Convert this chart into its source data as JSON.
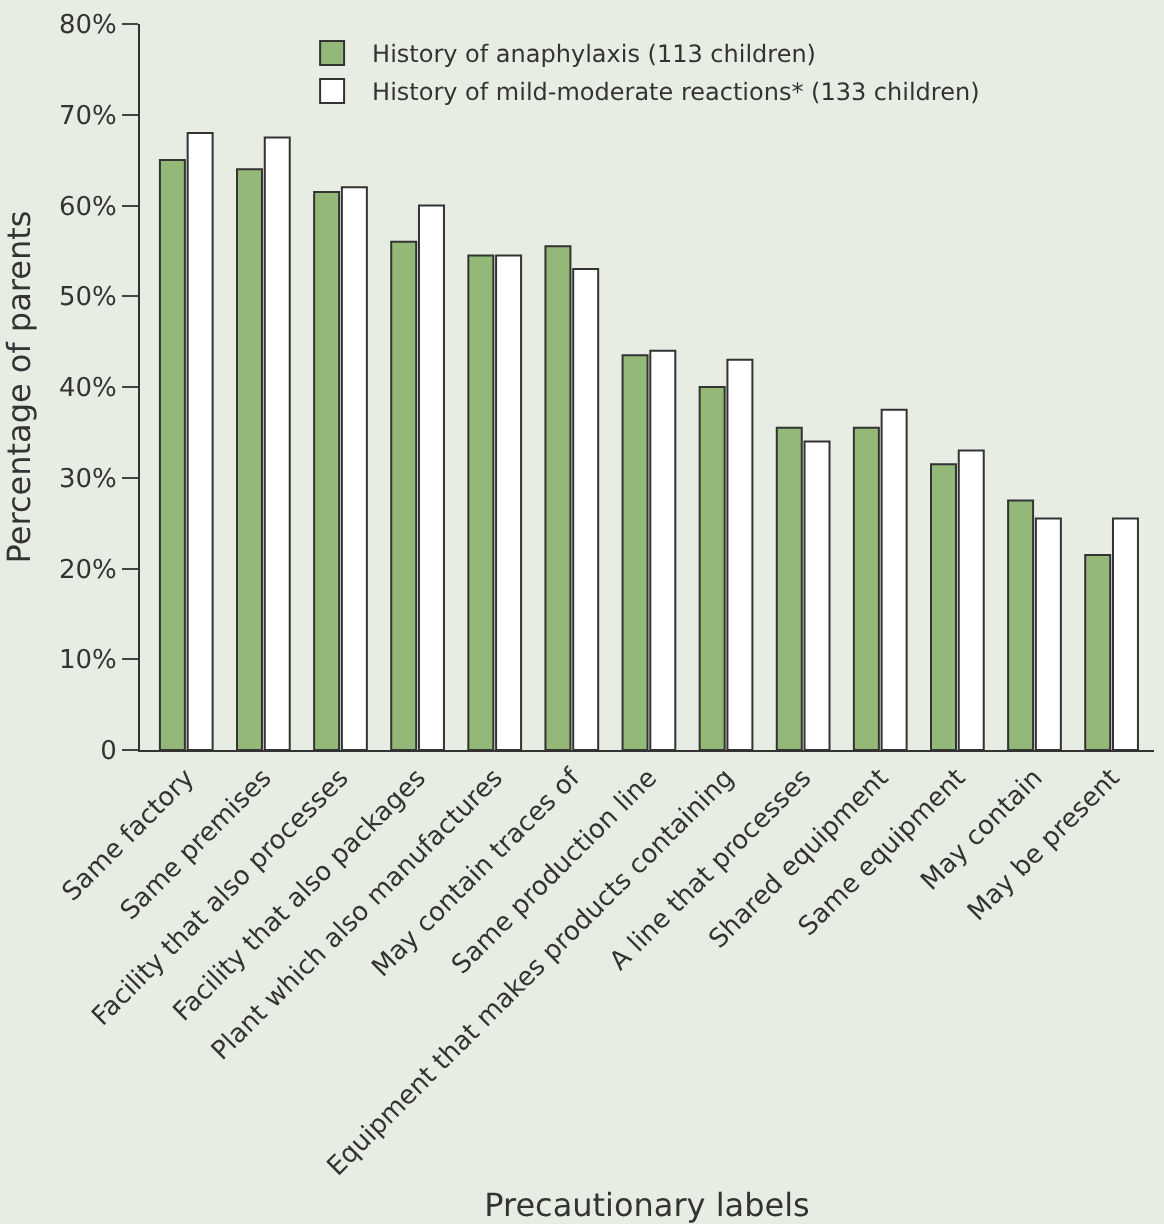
{
  "chart_data": {
    "type": "bar",
    "xlabel": "Precautionary labels",
    "ylabel": "Percentage of parents",
    "categories": [
      "Same factory",
      "Same premises",
      "Facility that also processes",
      "Facility that also packages",
      "Plant which also manufactures",
      "May contain traces of",
      "Same production line",
      "Equipment that makes products containing",
      "A line that processes",
      "Shared equipment",
      "Same equipment",
      "May contain",
      "May be present"
    ],
    "series": [
      {
        "name": "History of anaphylaxis (113 children)",
        "color": "#93b878",
        "values": [
          65,
          64,
          61.5,
          56,
          54.5,
          55.5,
          43.5,
          40,
          35.5,
          35.5,
          31.5,
          27.5,
          21.5
        ]
      },
      {
        "name": "History of mild-moderate reactions* (133 children)",
        "color": "#ffffff",
        "values": [
          68,
          67.5,
          62,
          60,
          54.5,
          53,
          44,
          43,
          34,
          37.5,
          33,
          25.5,
          25.5
        ]
      }
    ],
    "ylim": [
      0,
      80
    ],
    "yticks": [
      {
        "value": 0,
        "label": "0"
      },
      {
        "value": 10,
        "label": "10%"
      },
      {
        "value": 20,
        "label": "20%"
      },
      {
        "value": 30,
        "label": "30%"
      },
      {
        "value": 40,
        "label": "40%"
      },
      {
        "value": 50,
        "label": "50%"
      },
      {
        "value": 60,
        "label": "60%"
      },
      {
        "value": 70,
        "label": "70%"
      },
      {
        "value": 80,
        "label": "80%"
      }
    ],
    "grid": false,
    "legend": "top"
  }
}
